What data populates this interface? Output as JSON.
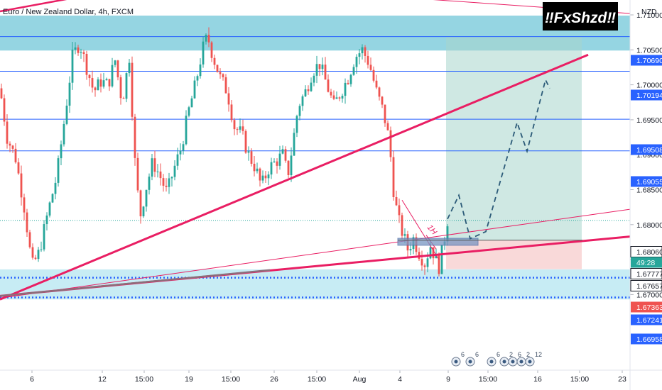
{
  "header": {
    "title": "Euro / New Zealand Dollar, 4h, FXCM",
    "currency": "NZD",
    "watermark": "‼FxShzd‼"
  },
  "chart_data": {
    "type": "candlestick",
    "symbol": "EURNZD",
    "timeframe": "4h",
    "ylim": [
      1.6665,
      1.7135
    ],
    "y_ticks": [
      "1.71000",
      "1.70500",
      "1.70000",
      "1.69500",
      "1.69000",
      "1.68500",
      "1.68000",
      "1.67500",
      "1.67000"
    ],
    "x_ticks": [
      "6",
      "12",
      "15:00",
      "19",
      "15:00",
      "26",
      "15:00",
      "Aug",
      "4",
      "15:00",
      "9",
      "15:00",
      "16",
      "15:00",
      "23"
    ],
    "price_labels": [
      {
        "value": "1.70690",
        "kind": "level"
      },
      {
        "value": "1.70194",
        "kind": "level"
      },
      {
        "value": "1.69508",
        "kind": "level"
      },
      {
        "value": "1.69055",
        "kind": "level"
      },
      {
        "value": "1.68060",
        "kind": "last"
      },
      {
        "value": "49:28",
        "kind": "countdown"
      },
      {
        "value": "1.67777",
        "kind": "entry"
      },
      {
        "value": "1.67657",
        "kind": "line"
      },
      {
        "value": "1.67363",
        "kind": "stop"
      },
      {
        "value": "1.67241",
        "kind": "dotted"
      },
      {
        "value": "1.66958",
        "kind": "dotted"
      }
    ],
    "horizontal_levels": [
      1.7069,
      1.70194,
      1.69508,
      1.69055
    ],
    "dotted_levels": [
      1.67241,
      1.66958
    ],
    "zones": [
      {
        "name": "supply",
        "from": 1.7049,
        "to": 1.7099,
        "color": "#8fd3e0"
      },
      {
        "name": "demand",
        "from": 1.6693,
        "to": 1.6736,
        "color": "#c4ebf3"
      }
    ],
    "position": {
      "entry": 1.67777,
      "target": 1.7069,
      "stop": 1.67363
    },
    "annotation": "1H",
    "event_badges": [
      "6",
      "6",
      "6",
      "2",
      "6",
      "2",
      "12"
    ],
    "last_price": 1.6806,
    "colors": {
      "up": "#26a69a",
      "down": "#ef5350",
      "trend": "#e91e63",
      "level": "#2962ff",
      "projection": "#2b5a78"
    }
  }
}
